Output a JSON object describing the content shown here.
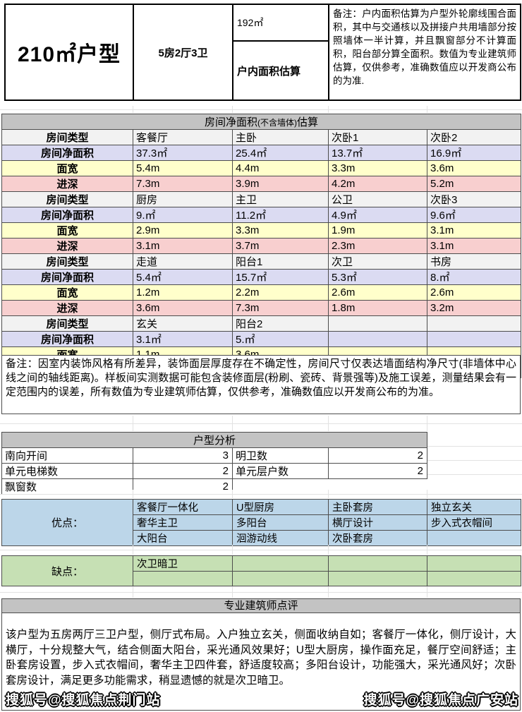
{
  "header": {
    "title": "210㎡户型",
    "layout": "5房2厅3卫",
    "area_value": "192㎡",
    "area_label": "户内面积估算",
    "note": "备注：户内面积估算为户型外轮廓线围合面积，其中与交通核以及拼接户共用墙部分按照墙体一半计算，并且飘窗部分不计算面积，阳台部分算全面积。数值为专业建筑师估算，仅供参考，准确数值应以开发商公布的为准."
  },
  "room_table": {
    "title_main": "房间净面积",
    "title_small": "(不含墙体)",
    "title_tail": "估算",
    "row_labels": {
      "type": "房间类型",
      "area": "房间净面积",
      "width": "面宽",
      "depth": "进深"
    },
    "groups": [
      {
        "types": [
          "客餐厅",
          "主卧",
          "次卧1",
          "次卧2"
        ],
        "areas": [
          "37.3㎡",
          "25.4㎡",
          "13.7㎡",
          "16.9㎡"
        ],
        "widths": [
          "5.4m",
          "4.4m",
          "3.3m",
          "3.6m"
        ],
        "depths": [
          "7.3m",
          "3.9m",
          "4.2m",
          "5.2m"
        ]
      },
      {
        "types": [
          "厨房",
          "主卫",
          "公卫",
          "次卧3"
        ],
        "areas": [
          "9.㎡",
          "11.2㎡",
          "4.9㎡",
          "9.6㎡"
        ],
        "widths": [
          "2.9m",
          "3.3m",
          "1.9m",
          "3.1m"
        ],
        "depths": [
          "3.1m",
          "3.7m",
          "2.3m",
          "3.1m"
        ]
      },
      {
        "types": [
          "走道",
          "阳台1",
          "次卫",
          "书房"
        ],
        "areas": [
          "5.4㎡",
          "15.7㎡",
          "5.3㎡",
          "8.㎡"
        ],
        "widths": [
          "1.2m",
          "2.2m",
          "2.6m",
          "2.6m"
        ],
        "depths": [
          "3.6m",
          "7.3m",
          "1.8m",
          "3.2m"
        ]
      },
      {
        "types": [
          "玄关",
          "阳台2",
          "",
          ""
        ],
        "areas": [
          "3.1㎡",
          "5.㎡",
          "",
          ""
        ],
        "widths": [
          "1.1m",
          "3.6m",
          "",
          ""
        ],
        "depths": [
          "2.9m",
          "1.4m",
          "",
          ""
        ]
      }
    ]
  },
  "note2": "备注：因室内装饰风格有所差异，装饰面层厚度存在不确定性，房间尺寸仅表达墙面结构净尺寸(非墙体中心线之间的轴线距离)。样板间实测数据可能包含装修面层(粉刷、瓷砖、背景强等)及施工误差，测量结果会有一定范围内的误差，所有数值为专业建筑师估算，仅供参考，准确数值应以开发商公布的为准。",
  "analysis": {
    "title": "户型分析",
    "rows": [
      [
        {
          "label": "南向开间",
          "value": "3"
        },
        {
          "label": "明卫数",
          "value": "2"
        }
      ],
      [
        {
          "label": "单元电梯数",
          "value": "2"
        },
        {
          "label": "单元层户数",
          "value": "2"
        }
      ],
      [
        {
          "label": "飘窗数",
          "value": "2"
        },
        null
      ]
    ]
  },
  "pros": {
    "label": "优点：",
    "rows": [
      [
        "客餐厅一体化",
        "U型厨房",
        "主卧套房",
        "独立玄关"
      ],
      [
        "奢华主卫",
        "多阳台",
        "横厅设计",
        "步入式衣帽间"
      ],
      [
        "大阳台",
        "洄游动线",
        "次卧套房",
        ""
      ]
    ]
  },
  "cons": {
    "label": "缺点：",
    "rows": [
      [
        "次卫暗卫",
        "",
        "",
        ""
      ],
      [
        "",
        "",
        "",
        ""
      ]
    ]
  },
  "review": {
    "title": "专业建筑师点评",
    "text": "该户型为五房两厅三卫户型，侧厅式布局。入户独立玄关，侧面收纳自如；客餐厅一体化，侧厅设计，大横厅，十分规整大气，结合侧面大阳台，采光通风效果好；U型大厨房，操作面充足，餐厅空间舒适；主卧套房设置，步入式衣帽间，奢华主卫四件套，舒适度较高；多阳台设计，功能强大，采光通风好；次卧套房设计，满足更多功能需求，稍显遗憾的就是次卫暗卫。"
  },
  "watermarks": {
    "left": "搜狐号@搜狐焦点荆门站",
    "right": "搜狐号@搜狐焦点广安站"
  },
  "colors": {
    "header_bar": "#c3c3c3",
    "row_type": "#f2f2f2",
    "row_area": "#dbdbf2",
    "row_width": "#ffffcb",
    "row_depth": "#f8cfcf",
    "pros_bg": "#bcd6e9",
    "cons_bg": "#c6e0b4",
    "border": "#4d4d4d"
  }
}
